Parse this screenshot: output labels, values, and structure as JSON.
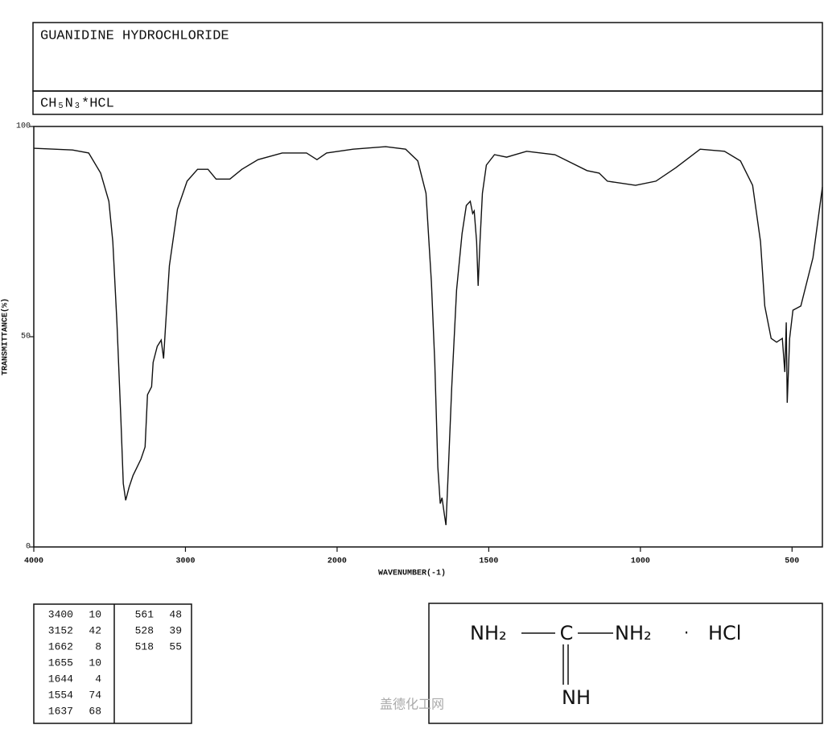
{
  "chart_data": {
    "type": "line",
    "title": "GUANIDINE HYDROCHLORIDE",
    "subtitle": "CH₅N₃*HCL",
    "xlabel": "WAVENUMBER(-1)",
    "ylabel": "TRANSMITTANCE(%)",
    "x": [
      4000,
      3745,
      3638,
      3559,
      3505,
      3479,
      3452,
      3426,
      3410,
      3394,
      3372,
      3346,
      3293,
      3266,
      3250,
      3223,
      3213,
      3186,
      3160,
      3144,
      3133,
      3106,
      3053,
      2989,
      2920,
      2851,
      2798,
      2707,
      2628,
      2521,
      2362,
      2202,
      2133,
      2069,
      1947,
      1840,
      1774,
      1734,
      1707,
      1689,
      1678,
      1668,
      1660,
      1654,
      1646,
      1641,
      1633,
      1622,
      1606,
      1588,
      1574,
      1561,
      1553,
      1548,
      1540,
      1535,
      1529,
      1521,
      1508,
      1481,
      1441,
      1375,
      1282,
      1176,
      1136,
      1109,
      1016,
      949,
      883,
      803,
      723,
      670,
      630,
      604,
      590,
      569,
      551,
      532,
      524,
      519,
      516,
      508,
      497,
      471,
      431,
      400
    ],
    "series": [
      {
        "color": "#111111",
        "values": [
          94.8,
          94.4,
          93.7,
          88.9,
          82.2,
          72.6,
          53.4,
          30.5,
          15.1,
          11.1,
          14.2,
          17.0,
          20.9,
          23.8,
          36.2,
          38.1,
          43.9,
          47.7,
          49.2,
          44.8,
          51.5,
          66.9,
          80.3,
          87.0,
          89.8,
          89.8,
          87.5,
          87.5,
          89.8,
          92.1,
          93.7,
          93.7,
          92.1,
          93.7,
          94.6,
          95.2,
          94.6,
          91.8,
          84.1,
          63.0,
          43.9,
          19.0,
          10.3,
          11.7,
          7.5,
          5.2,
          19.0,
          38.1,
          61.1,
          74.5,
          81.2,
          82.2,
          79.3,
          79.9,
          72.6,
          62.1,
          72.6,
          84.1,
          90.8,
          93.3,
          92.7,
          94.1,
          93.3,
          89.5,
          88.9,
          87.0,
          86.0,
          87.0,
          90.2,
          94.6,
          94.1,
          91.8,
          86.0,
          72.6,
          57.3,
          49.6,
          48.7,
          49.6,
          41.6,
          53.4,
          34.3,
          49.6,
          56.3,
          57.3,
          68.8,
          85.6
        ]
      }
    ],
    "xlim": [
      4000,
      400
    ],
    "xticks": [
      4000,
      3000,
      2000,
      1500,
      1000,
      500
    ],
    "ylim": [
      0,
      100
    ],
    "yticks": [
      0,
      50,
      100
    ]
  },
  "peak_table": {
    "rows": [
      [
        3400,
        10
      ],
      [
        3152,
        42
      ],
      [
        1662,
        8
      ],
      [
        1655,
        10
      ],
      [
        1644,
        4
      ],
      [
        1554,
        74
      ],
      [
        1637,
        68
      ],
      [
        561,
        48
      ],
      [
        528,
        39
      ],
      [
        518,
        55
      ]
    ]
  },
  "structure": {
    "left": "NH₂",
    "center": "C",
    "right": "NH₂",
    "separator": "·",
    "salt": "HCl",
    "bottom": "NH"
  },
  "watermark": "盖德化工网"
}
